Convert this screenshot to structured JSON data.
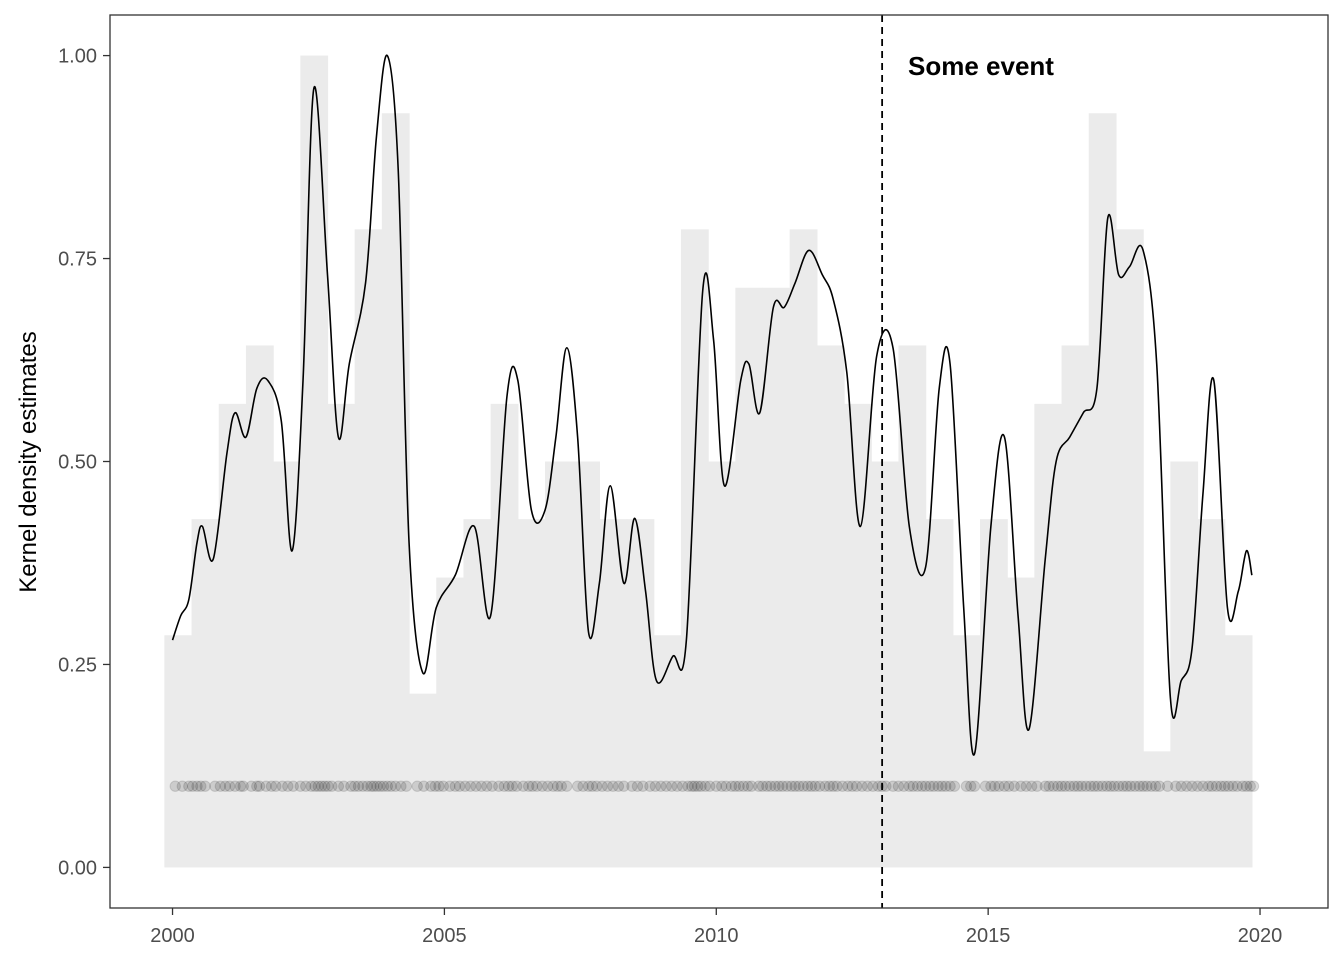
{
  "chart_data": {
    "type": "area",
    "title": "",
    "xlabel": "",
    "ylabel": "Kernel density estimates",
    "xlim": [
      1998.85,
      2021.25
    ],
    "ylim": [
      -0.05,
      1.05
    ],
    "x_ticks": [
      2000,
      2005,
      2010,
      2015,
      2020
    ],
    "x_tick_labels": [
      "2000",
      "2005",
      "2010",
      "2015",
      "2020"
    ],
    "y_ticks": [
      0,
      0.25,
      0.5,
      0.75,
      1.0
    ],
    "y_tick_labels": [
      "0.00",
      "0.25",
      "0.50",
      "0.75",
      "1.00"
    ],
    "grid": false,
    "legend": "none",
    "colors": {
      "histogram": "#ebebeb",
      "line": "#000000",
      "points": "#000000"
    },
    "histogram": {
      "bin_width": 0.5,
      "bins": [
        {
          "x0": 1999.85,
          "y": 0.286
        },
        {
          "x0": 2000.35,
          "y": 0.429
        },
        {
          "x0": 2000.85,
          "y": 0.571
        },
        {
          "x0": 2001.35,
          "y": 0.643
        },
        {
          "x0": 2001.85,
          "y": 0.5
        },
        {
          "x0": 2002.35,
          "y": 1.0
        },
        {
          "x0": 2002.85,
          "y": 0.571
        },
        {
          "x0": 2003.35,
          "y": 0.786
        },
        {
          "x0": 2003.85,
          "y": 0.929
        },
        {
          "x0": 2004.35,
          "y": 0.214
        },
        {
          "x0": 2004.85,
          "y": 0.357
        },
        {
          "x0": 2005.35,
          "y": 0.429
        },
        {
          "x0": 2005.85,
          "y": 0.571
        },
        {
          "x0": 2006.35,
          "y": 0.429
        },
        {
          "x0": 2006.85,
          "y": 0.5
        },
        {
          "x0": 2007.35,
          "y": 0.5
        },
        {
          "x0": 2007.85,
          "y": 0.429
        },
        {
          "x0": 2008.35,
          "y": 0.429
        },
        {
          "x0": 2008.85,
          "y": 0.286
        },
        {
          "x0": 2009.35,
          "y": 0.786
        },
        {
          "x0": 2009.85,
          "y": 0.5
        },
        {
          "x0": 2010.35,
          "y": 0.714
        },
        {
          "x0": 2010.85,
          "y": 0.714
        },
        {
          "x0": 2011.35,
          "y": 0.786
        },
        {
          "x0": 2011.85,
          "y": 0.643
        },
        {
          "x0": 2012.35,
          "y": 0.571
        },
        {
          "x0": 2012.85,
          "y": 0.5
        },
        {
          "x0": 2013.35,
          "y": 0.643
        },
        {
          "x0": 2013.85,
          "y": 0.429
        },
        {
          "x0": 2014.35,
          "y": 0.286
        },
        {
          "x0": 2014.85,
          "y": 0.429
        },
        {
          "x0": 2015.35,
          "y": 0.357
        },
        {
          "x0": 2015.85,
          "y": 0.571
        },
        {
          "x0": 2016.35,
          "y": 0.643
        },
        {
          "x0": 2016.85,
          "y": 0.929
        },
        {
          "x0": 2017.35,
          "y": 0.786
        },
        {
          "x0": 2017.85,
          "y": 0.143
        },
        {
          "x0": 2018.35,
          "y": 0.5
        },
        {
          "x0": 2018.85,
          "y": 0.429
        },
        {
          "x0": 2019.35,
          "y": 0.286
        }
      ]
    },
    "series": [
      {
        "type": "line",
        "x": [
          2000.0,
          2000.15,
          2000.3,
          2000.45,
          2000.55,
          2000.75,
          2001.0,
          2001.15,
          2001.35,
          2001.55,
          2001.75,
          2002.0,
          2002.2,
          2002.4,
          2002.6,
          2002.85,
          2003.05,
          2003.25,
          2003.55,
          2003.75,
          2003.95,
          2004.15,
          2004.35,
          2004.6,
          2004.85,
          2005.2,
          2005.55,
          2005.85,
          2006.15,
          2006.35,
          2006.6,
          2006.85,
          2007.05,
          2007.25,
          2007.45,
          2007.65,
          2007.85,
          2008.05,
          2008.3,
          2008.5,
          2008.7,
          2008.9,
          2009.2,
          2009.45,
          2009.75,
          2009.95,
          2010.15,
          2010.45,
          2010.6,
          2010.8,
          2011.05,
          2011.25,
          2011.45,
          2011.7,
          2011.95,
          2012.15,
          2012.4,
          2012.65,
          2012.95,
          2013.25,
          2013.55,
          2013.85,
          2014.1,
          2014.3,
          2014.55,
          2014.75,
          2015.05,
          2015.3,
          2015.55,
          2015.75,
          2016.05,
          2016.25,
          2016.5,
          2016.75,
          2017.0,
          2017.2,
          2017.4,
          2017.6,
          2017.85,
          2018.1,
          2018.35,
          2018.55,
          2018.75,
          2018.95,
          2019.15,
          2019.4,
          2019.6,
          2019.75,
          2019.85
        ],
        "y": [
          0.28,
          0.31,
          0.33,
          0.4,
          0.42,
          0.38,
          0.51,
          0.56,
          0.53,
          0.59,
          0.6,
          0.55,
          0.39,
          0.6,
          0.96,
          0.73,
          0.53,
          0.62,
          0.72,
          0.9,
          1.0,
          0.86,
          0.4,
          0.24,
          0.32,
          0.36,
          0.42,
          0.31,
          0.58,
          0.6,
          0.44,
          0.44,
          0.53,
          0.64,
          0.53,
          0.29,
          0.35,
          0.47,
          0.35,
          0.43,
          0.34,
          0.23,
          0.26,
          0.28,
          0.71,
          0.65,
          0.47,
          0.6,
          0.62,
          0.56,
          0.69,
          0.69,
          0.72,
          0.76,
          0.73,
          0.7,
          0.61,
          0.42,
          0.63,
          0.64,
          0.42,
          0.37,
          0.59,
          0.62,
          0.32,
          0.14,
          0.42,
          0.53,
          0.31,
          0.17,
          0.38,
          0.5,
          0.53,
          0.56,
          0.59,
          0.8,
          0.73,
          0.74,
          0.76,
          0.62,
          0.21,
          0.23,
          0.27,
          0.46,
          0.6,
          0.32,
          0.34,
          0.39,
          0.36
        ]
      },
      {
        "type": "scatter",
        "y_constant": 0.1,
        "x": [
          2000.05,
          2000.18,
          2000.3,
          2000.37,
          2000.45,
          2000.52,
          2000.6,
          2000.78,
          2000.88,
          2000.97,
          2001.05,
          2001.15,
          2001.25,
          2001.3,
          2001.45,
          2001.55,
          2001.6,
          2001.72,
          2001.82,
          2001.9,
          2002.02,
          2002.12,
          2002.22,
          2002.35,
          2002.45,
          2002.55,
          2002.62,
          2002.68,
          2002.74,
          2002.8,
          2002.86,
          2002.93,
          2003.05,
          2003.15,
          2003.28,
          2003.35,
          2003.42,
          2003.5,
          2003.58,
          2003.65,
          2003.7,
          2003.76,
          2003.82,
          2003.88,
          2003.95,
          2004.02,
          2004.1,
          2004.2,
          2004.3,
          2004.5,
          2004.62,
          2004.75,
          2004.83,
          2004.9,
          2004.98,
          2005.1,
          2005.2,
          2005.28,
          2005.38,
          2005.48,
          2005.58,
          2005.68,
          2005.78,
          2005.88,
          2006.0,
          2006.1,
          2006.18,
          2006.25,
          2006.33,
          2006.45,
          2006.55,
          2006.62,
          2006.7,
          2006.8,
          2006.9,
          2007.0,
          2007.08,
          2007.15,
          2007.25,
          2007.45,
          2007.55,
          2007.65,
          2007.72,
          2007.8,
          2007.9,
          2008.0,
          2008.1,
          2008.2,
          2008.3,
          2008.45,
          2008.55,
          2008.65,
          2008.78,
          2008.88,
          2008.98,
          2009.08,
          2009.18,
          2009.28,
          2009.38,
          2009.48,
          2009.55,
          2009.6,
          2009.66,
          2009.72,
          2009.8,
          2009.88,
          2010.0,
          2010.1,
          2010.18,
          2010.28,
          2010.35,
          2010.42,
          2010.5,
          2010.58,
          2010.65,
          2010.78,
          2010.85,
          2010.93,
          2011.0,
          2011.08,
          2011.15,
          2011.22,
          2011.3,
          2011.38,
          2011.45,
          2011.52,
          2011.6,
          2011.68,
          2011.75,
          2011.82,
          2011.9,
          2012.0,
          2012.08,
          2012.15,
          2012.22,
          2012.32,
          2012.42,
          2012.5,
          2012.58,
          2012.68,
          2012.78,
          2012.88,
          2012.98,
          2013.05,
          2013.12,
          2013.25,
          2013.35,
          2013.45,
          2013.55,
          2013.62,
          2013.7,
          2013.78,
          2013.85,
          2013.93,
          2014.0,
          2014.08,
          2014.15,
          2014.22,
          2014.3,
          2014.38,
          2014.6,
          2014.68,
          2014.75,
          2014.95,
          2015.05,
          2015.12,
          2015.2,
          2015.3,
          2015.38,
          2015.48,
          2015.6,
          2015.7,
          2015.8,
          2015.9,
          2016.05,
          2016.12,
          2016.2,
          2016.28,
          2016.35,
          2016.42,
          2016.5,
          2016.58,
          2016.65,
          2016.72,
          2016.8,
          2016.88,
          2016.95,
          2017.02,
          2017.1,
          2017.18,
          2017.25,
          2017.32,
          2017.4,
          2017.48,
          2017.55,
          2017.62,
          2017.7,
          2017.78,
          2017.85,
          2017.92,
          2018.0,
          2018.08,
          2018.15,
          2018.3,
          2018.45,
          2018.55,
          2018.65,
          2018.75,
          2018.85,
          2018.95,
          2019.05,
          2019.12,
          2019.2,
          2019.28,
          2019.35,
          2019.42,
          2019.5,
          2019.58,
          2019.68,
          2019.75,
          2019.82,
          2019.88
        ]
      }
    ],
    "reference_lines": [
      {
        "orientation": "vertical",
        "x": 2013.05,
        "style": "dashed",
        "label": "Some event"
      }
    ]
  }
}
